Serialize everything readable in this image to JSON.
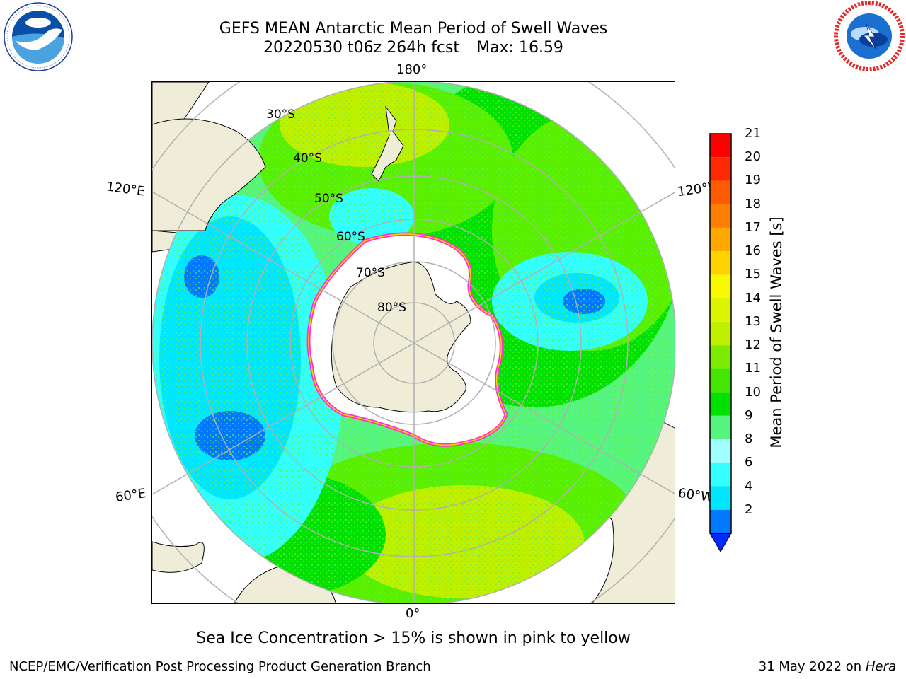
{
  "header": {
    "title": "GEFS MEAN Antarctic Mean Period of Swell Waves",
    "run": "20220530 t06z 264h fcst",
    "max": "Max: 16.59"
  },
  "map": {
    "projection": "south-polar-stereographic",
    "lon_labels": [
      "180°",
      "120°E",
      "120°W",
      "60°E",
      "60°W",
      "0°"
    ],
    "lat_labels": [
      "30°S",
      "40°S",
      "50°S",
      "60°S",
      "70°S",
      "80°S"
    ],
    "colors": {
      "land": "#efedd8",
      "ice_free": "#ffffff",
      "grid": "#b0b0b0",
      "coast": "#000000"
    },
    "field_regions": [
      {
        "level": "10-11",
        "color": "#00e100"
      },
      {
        "level": "11-12",
        "color": "#58f000"
      },
      {
        "level": "12-13",
        "color": "#bff000"
      },
      {
        "level": "13-14",
        "color": "#e6fa00"
      },
      {
        "level": "6-8",
        "color": "#33ffff"
      },
      {
        "level": "4-6",
        "color": "#00e6ff"
      },
      {
        "level": "2-4",
        "color": "#0078ff"
      }
    ]
  },
  "colorbar": {
    "label": "Mean Period of Swell Waves [s]",
    "ticks": [
      "21",
      "20",
      "19",
      "18",
      "17",
      "16",
      "15",
      "14",
      "13",
      "12",
      "11",
      "10",
      "9",
      "8",
      "6",
      "4",
      "2"
    ],
    "colors": [
      "#ff0000",
      "#ff2a00",
      "#ff5a00",
      "#ff7d00",
      "#ffa800",
      "#ffd200",
      "#f8f800",
      "#dcf500",
      "#c0f000",
      "#7ceb00",
      "#44e600",
      "#00e100",
      "#55f57f",
      "#a0ffff",
      "#33ffff",
      "#00e6ff",
      "#0078ff"
    ],
    "under_color": "#0028ff"
  },
  "note": "Sea Ice Concentration > 15% is shown in pink to yellow",
  "footer": {
    "org": "NCEP/EMC/Verification Post Processing Product Generation Branch",
    "date": "31 May 2022 on",
    "machine": "Hera"
  },
  "logos": [
    "noaa-logo",
    "nws-logo"
  ]
}
